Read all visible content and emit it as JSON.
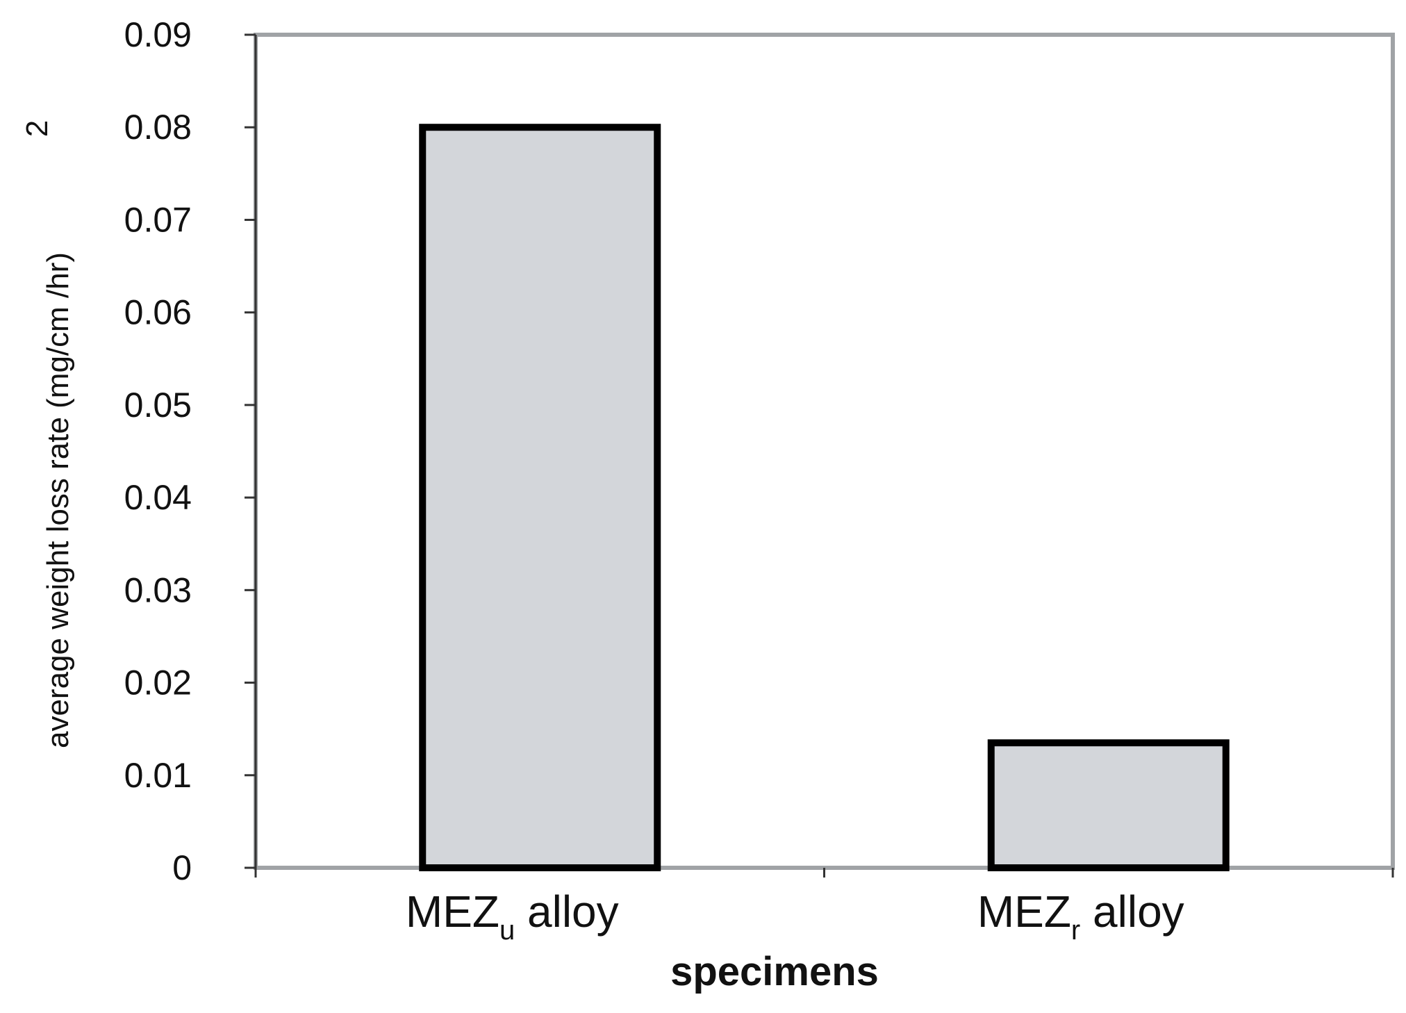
{
  "chart_data": {
    "type": "bar",
    "categories": [
      {
        "main": "MEZ",
        "sub": "u",
        "suffix": " alloy"
      },
      {
        "main": "MEZ",
        "sub": "r",
        "suffix": " alloy"
      }
    ],
    "values": [
      0.08,
      0.0135
    ],
    "xlabel": "specimens",
    "ylabel": {
      "text": "average weight loss rate (mg/cm /hr)",
      "superscript": "2"
    },
    "ylim": [
      0,
      0.09
    ],
    "yticks": [
      "0",
      "0.01",
      "0.02",
      "0.03",
      "0.04",
      "0.05",
      "0.06",
      "0.07",
      "0.08",
      "0.09"
    ],
    "grid": false,
    "legend": "none",
    "colors": {
      "bar_fill": "#d3d6da",
      "bar_stroke": "#000000",
      "frame": "#a0a3a6",
      "axis": "#333333"
    }
  }
}
